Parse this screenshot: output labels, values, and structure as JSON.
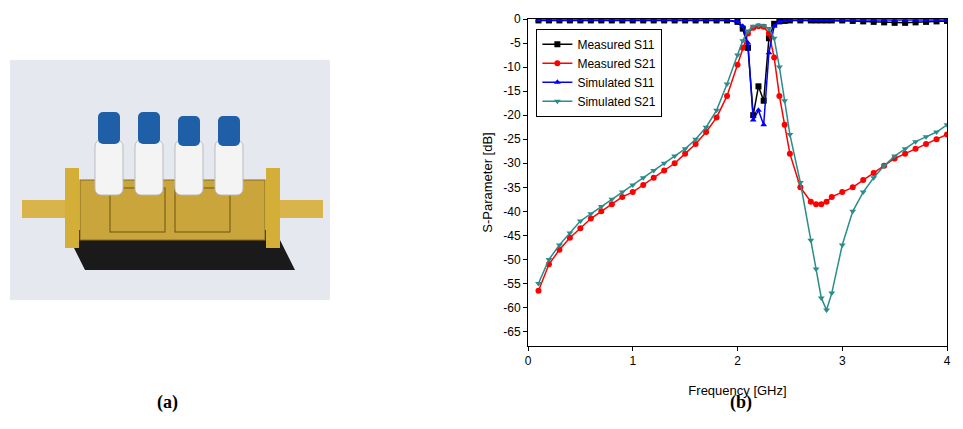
{
  "chart_data": {
    "type": "line",
    "x_label": "Frequency [GHz]",
    "y_label": "S-Parameter [dB]",
    "x": [
      0.1,
      0.2,
      0.3,
      0.4,
      0.5,
      0.6,
      0.7,
      0.8,
      0.9,
      1.0,
      1.1,
      1.2,
      1.3,
      1.4,
      1.5,
      1.6,
      1.7,
      1.8,
      1.9,
      2.0,
      2.05,
      2.1,
      2.15,
      2.2,
      2.25,
      2.3,
      2.35,
      2.4,
      2.45,
      2.5,
      2.6,
      2.7,
      2.75,
      2.8,
      2.85,
      2.9,
      3.0,
      3.1,
      3.2,
      3.3,
      3.4,
      3.5,
      3.6,
      3.7,
      3.8,
      3.9,
      4.0
    ],
    "series": [
      {
        "name": "Measured S11",
        "color": "#000000",
        "marker": "square",
        "values": [
          -0.3,
          -0.3,
          -0.3,
          -0.3,
          -0.3,
          -0.3,
          -0.3,
          -0.3,
          -0.3,
          -0.3,
          -0.3,
          -0.3,
          -0.3,
          -0.3,
          -0.3,
          -0.3,
          -0.3,
          -0.3,
          -0.3,
          -0.6,
          -2,
          -6,
          -20,
          -14,
          -17,
          -4,
          -1,
          -0.5,
          -0.4,
          -0.3,
          -0.3,
          -0.3,
          -0.3,
          -0.3,
          -0.3,
          -0.3,
          -0.3,
          -0.4,
          -0.5,
          -0.6,
          -0.7,
          -0.8,
          -0.8,
          -0.7,
          -0.6,
          -0.5,
          -0.4
        ]
      },
      {
        "name": "Measured S21",
        "color": "#ff0000",
        "marker": "circle",
        "values": [
          -56.5,
          -51,
          -48,
          -45.5,
          -43.5,
          -41.5,
          -40,
          -38.5,
          -37,
          -36,
          -34.5,
          -33,
          -31.5,
          -30,
          -28,
          -26,
          -23.5,
          -20.5,
          -16,
          -9.5,
          -6,
          -3,
          -1.8,
          -1.5,
          -1.6,
          -3,
          -8,
          -16,
          -22,
          -28,
          -35,
          -38,
          -38.5,
          -38.5,
          -38,
          -37,
          -36,
          -35,
          -33.5,
          -32,
          -30.5,
          -29,
          -28,
          -27,
          -26,
          -25,
          -24
        ]
      },
      {
        "name": "Simulated S11",
        "color": "#0000ff",
        "marker": "triangle-up",
        "values": [
          -0.2,
          -0.2,
          -0.2,
          -0.2,
          -0.2,
          -0.2,
          -0.2,
          -0.2,
          -0.2,
          -0.2,
          -0.2,
          -0.2,
          -0.2,
          -0.2,
          -0.2,
          -0.2,
          -0.2,
          -0.2,
          -0.2,
          -0.5,
          -1.5,
          -5,
          -21,
          -19,
          -22,
          -7,
          -1.5,
          -0.5,
          -0.3,
          -0.2,
          -0.2,
          -0.2,
          -0.2,
          -0.2,
          -0.2,
          -0.2,
          -0.2,
          -0.2,
          -0.2,
          -0.2,
          -0.2,
          -0.2,
          -0.2,
          -0.2,
          -0.2,
          -0.2,
          -0.2
        ]
      },
      {
        "name": "Simulated S21",
        "color": "#2a8c8c",
        "marker": "triangle-down",
        "values": [
          -55,
          -50,
          -47,
          -44.5,
          -42,
          -40.5,
          -39,
          -37.5,
          -36,
          -34.5,
          -33,
          -31.5,
          -30,
          -28.5,
          -27,
          -25,
          -22.5,
          -19,
          -13.5,
          -7.5,
          -4.5,
          -2.5,
          -1.5,
          -1.3,
          -1.4,
          -2,
          -4,
          -10,
          -17,
          -24,
          -34,
          -46,
          -52,
          -58,
          -60.5,
          -57,
          -47,
          -40,
          -36,
          -33,
          -30.5,
          -28.5,
          -27,
          -25.5,
          -24.5,
          -23.5,
          -22
        ]
      }
    ],
    "xlim": [
      0,
      4
    ],
    "xticks": [
      0,
      1,
      2,
      3,
      4
    ],
    "ylim": [
      -68,
      0
    ],
    "yticks": [
      0,
      -5,
      -10,
      -15,
      -20,
      -25,
      -30,
      -35,
      -40,
      -45,
      -50,
      -55,
      -60,
      -65
    ],
    "grid": false,
    "legend": "top left",
    "annotations": [
      "(a)",
      "(b)"
    ]
  }
}
